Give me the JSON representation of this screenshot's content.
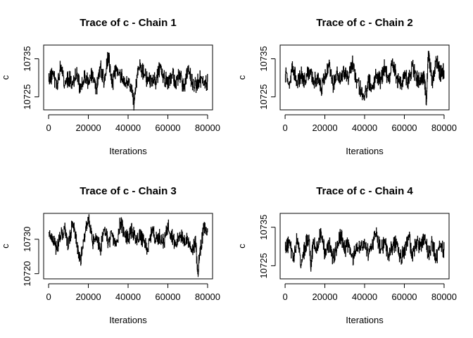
{
  "chart_data": [
    {
      "type": "line",
      "title": "Trace of c - Chain 1",
      "xlabel": "Iterations",
      "ylabel": "c",
      "xlim": [
        -2500,
        82500
      ],
      "ylim": [
        10721.6,
        10738.6
      ],
      "x_ticks": [
        0,
        20000,
        40000,
        60000,
        80000
      ],
      "y_ticks": [
        10725,
        10735
      ],
      "series": [
        {
          "x": [
            0,
            2000,
            4000,
            6000,
            8000,
            10000,
            12000,
            14000,
            16000,
            18000,
            20000,
            22000,
            24000,
            26000,
            28000,
            30000,
            32000,
            34000,
            36000,
            38000,
            40000,
            42000,
            43000,
            44000,
            46000,
            48000,
            50000,
            52000,
            54000,
            56000,
            58000,
            60000,
            62000,
            64000,
            66000,
            68000,
            70000,
            72000,
            74000,
            76000,
            78000,
            80000
          ],
          "y": [
            10729,
            10731,
            10728,
            10733,
            10728,
            10730,
            10729,
            10731,
            10727,
            10730,
            10729,
            10731,
            10727,
            10733,
            10729,
            10736,
            10728,
            10733,
            10731,
            10729,
            10728,
            10727,
            10723,
            10729,
            10733,
            10731,
            10729,
            10730,
            10729,
            10733,
            10730,
            10729,
            10731,
            10729,
            10731,
            10727,
            10733,
            10729,
            10728,
            10730,
            10728,
            10729
          ]
        }
      ]
    },
    {
      "type": "line",
      "title": "Trace of c - Chain 2",
      "xlabel": "Iterations",
      "ylabel": "c",
      "xlim": [
        -2500,
        82500
      ],
      "ylim": [
        10721.6,
        10738.6
      ],
      "x_ticks": [
        0,
        20000,
        40000,
        60000,
        80000
      ],
      "y_ticks": [
        10725,
        10735
      ],
      "series": [
        {
          "x": [
            0,
            2000,
            4000,
            6000,
            8000,
            10000,
            12000,
            14000,
            16000,
            18000,
            20000,
            22000,
            24000,
            26000,
            28000,
            30000,
            32000,
            34000,
            36000,
            38000,
            40000,
            42000,
            44000,
            46000,
            48000,
            50000,
            52000,
            54000,
            56000,
            58000,
            60000,
            62000,
            64000,
            66000,
            68000,
            70000,
            71000,
            72000,
            74000,
            76000,
            78000,
            80000
          ],
          "y": [
            10731,
            10729,
            10733,
            10728,
            10731,
            10729,
            10732,
            10729,
            10730,
            10727,
            10730,
            10733,
            10728,
            10731,
            10729,
            10732,
            10730,
            10734,
            10729,
            10727,
            10725,
            10729,
            10728,
            10731,
            10729,
            10733,
            10729,
            10735,
            10730,
            10728,
            10731,
            10729,
            10733,
            10730,
            10729,
            10731,
            10723,
            10737,
            10729,
            10735,
            10731,
            10732
          ]
        }
      ]
    },
    {
      "type": "line",
      "title": "Trace of c - Chain 3",
      "xlabel": "Iterations",
      "ylabel": "c",
      "xlim": [
        -2500,
        82500
      ],
      "ylim": [
        10718.5,
        10737.5
      ],
      "x_ticks": [
        0,
        20000,
        40000,
        60000,
        80000
      ],
      "y_ticks": [
        10720,
        10730
      ],
      "series": [
        {
          "x": [
            0,
            2000,
            4000,
            6000,
            8000,
            10000,
            12000,
            14000,
            16000,
            18000,
            20000,
            22000,
            24000,
            26000,
            28000,
            30000,
            32000,
            34000,
            36000,
            38000,
            40000,
            42000,
            44000,
            46000,
            48000,
            50000,
            52000,
            54000,
            56000,
            58000,
            60000,
            62000,
            64000,
            66000,
            68000,
            70000,
            72000,
            74000,
            75000,
            76000,
            78000,
            80000
          ],
          "y": [
            10732,
            10730,
            10727,
            10731,
            10733,
            10728,
            10735,
            10729,
            10724,
            10731,
            10736,
            10729,
            10731,
            10727,
            10733,
            10729,
            10731,
            10728,
            10735,
            10732,
            10730,
            10733,
            10729,
            10731,
            10729,
            10727,
            10733,
            10730,
            10731,
            10729,
            10734,
            10731,
            10728,
            10732,
            10729,
            10730,
            10727,
            10729,
            10720,
            10726,
            10733,
            10732
          ]
        }
      ]
    },
    {
      "type": "line",
      "title": "Trace of c - Chain 4",
      "xlabel": "Iterations",
      "ylabel": "c",
      "xlim": [
        -2500,
        82500
      ],
      "ylim": [
        10721.6,
        10738.6
      ],
      "x_ticks": [
        0,
        20000,
        40000,
        60000,
        80000
      ],
      "y_ticks": [
        10725,
        10735
      ],
      "series": [
        {
          "x": [
            0,
            2000,
            4000,
            6000,
            8000,
            10000,
            12000,
            13000,
            14000,
            16000,
            18000,
            20000,
            22000,
            24000,
            26000,
            28000,
            30000,
            32000,
            34000,
            36000,
            38000,
            40000,
            42000,
            44000,
            46000,
            48000,
            50000,
            52000,
            54000,
            56000,
            58000,
            60000,
            62000,
            64000,
            66000,
            68000,
            70000,
            72000,
            74000,
            76000,
            78000,
            80000
          ],
          "y": [
            10729,
            10731,
            10727,
            10732,
            10725,
            10730,
            10733,
            10724,
            10731,
            10729,
            10734,
            10728,
            10731,
            10727,
            10730,
            10733,
            10729,
            10731,
            10727,
            10730,
            10729,
            10731,
            10728,
            10731,
            10733,
            10729,
            10731,
            10728,
            10730,
            10731,
            10727,
            10729,
            10733,
            10728,
            10731,
            10730,
            10733,
            10728,
            10731,
            10727,
            10730,
            10729
          ]
        }
      ]
    }
  ]
}
